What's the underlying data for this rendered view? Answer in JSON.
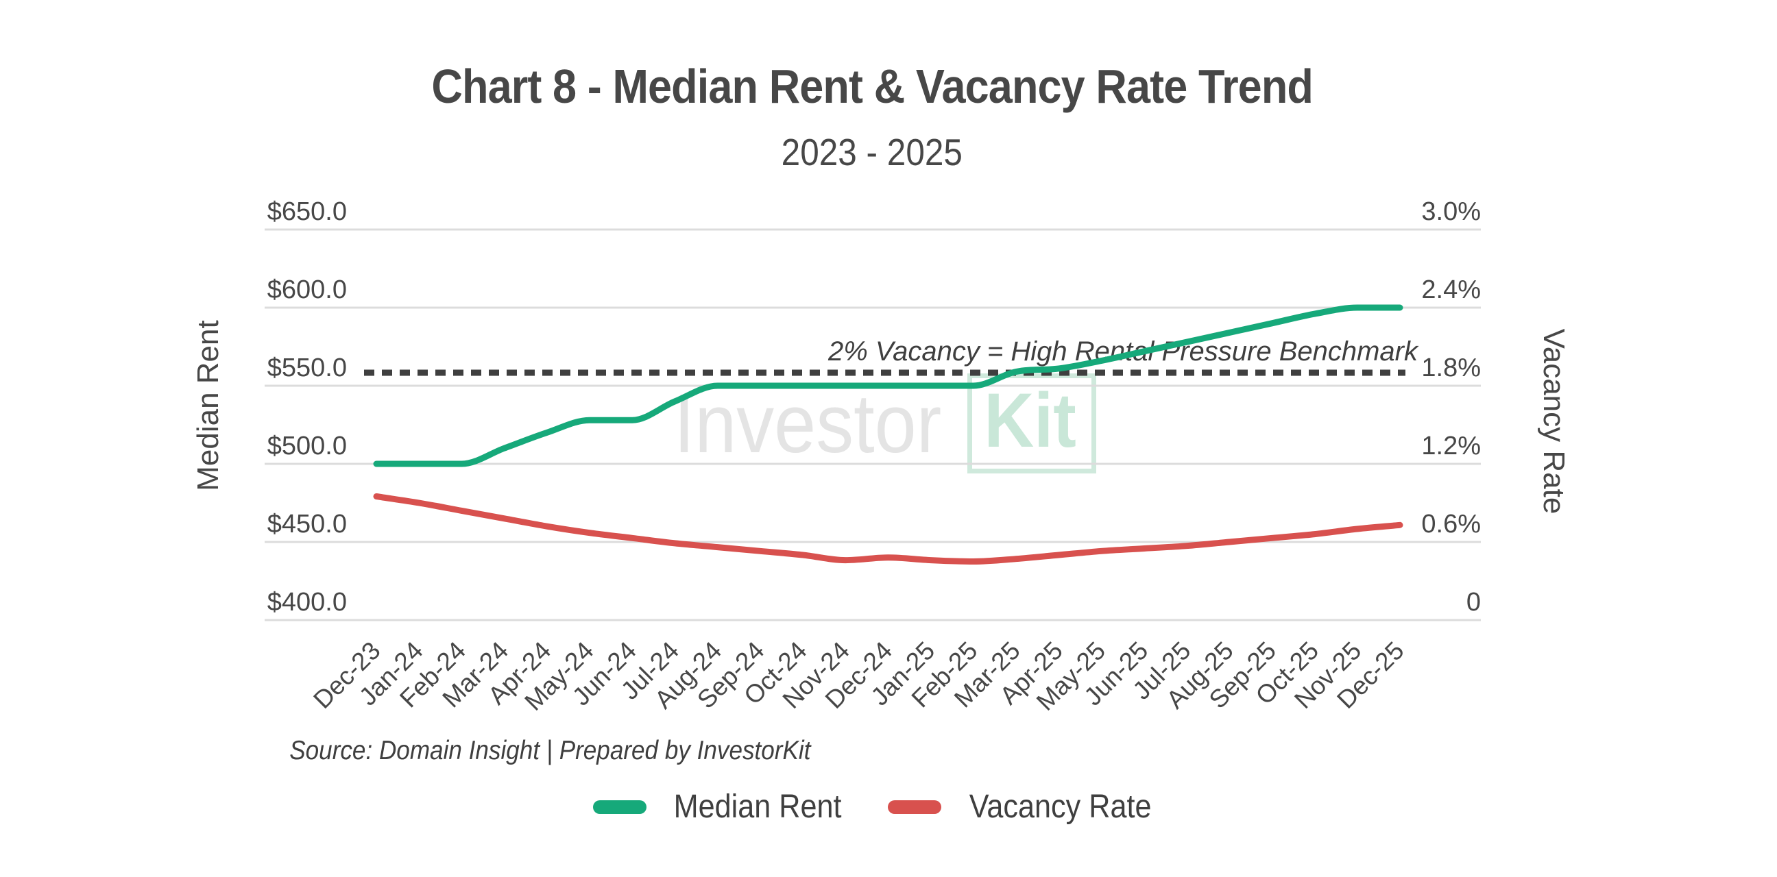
{
  "header": {
    "title": "Chart 8 - Median Rent & Vacancy Rate Trend",
    "subtitle": "2023 - 2025"
  },
  "watermark": {
    "part1": "Investor",
    "part2": "Kit"
  },
  "footer": {
    "source": "Source: Domain Insight | Prepared by InvestorKit"
  },
  "legend": [
    {
      "label": "Median Rent",
      "color": "#16A97A"
    },
    {
      "label": "Vacancy Rate",
      "color": "#D8514E"
    }
  ],
  "colors": {
    "accent_green": "#16A97A",
    "accent_red": "#D8514E",
    "grid": "#DCDCDC",
    "benchmark_line": "#3F3F3F",
    "text": "#474747",
    "watermark_gray": "#E4E4E4",
    "watermark_mint": "#C9E7D8"
  },
  "chart_data": {
    "type": "line",
    "title": "Chart 8 - Median Rent & Vacancy Rate Trend",
    "subtitle": "2023 - 2025",
    "grid": true,
    "legend_position": "bottom",
    "categories": [
      "Dec-23",
      "Jan-24",
      "Feb-24",
      "Mar-24",
      "Apr-24",
      "May-24",
      "Jun-24",
      "Jul-24",
      "Aug-24",
      "Sep-24",
      "Oct-24",
      "Nov-24",
      "Dec-24",
      "Jan-25",
      "Feb-25",
      "Mar-25",
      "Apr-25",
      "May-25",
      "Jun-25",
      "Jul-25",
      "Aug-25",
      "Sep-25",
      "Oct-25",
      "Nov-25",
      "Dec-25"
    ],
    "series": [
      {
        "name": "Median Rent",
        "axis": "left",
        "color": "#16A97A",
        "values": [
          500,
          500,
          500,
          510,
          520,
          528,
          528,
          540,
          550,
          550,
          550,
          550,
          550,
          550,
          550,
          559,
          561,
          566,
          572,
          578,
          584,
          590,
          596,
          600,
          600
        ]
      },
      {
        "name": "Vacancy Rate",
        "axis": "right",
        "color": "#D8514E",
        "values": [
          0.95,
          0.9,
          0.84,
          0.78,
          0.72,
          0.67,
          0.63,
          0.59,
          0.56,
          0.53,
          0.5,
          0.46,
          0.48,
          0.46,
          0.45,
          0.47,
          0.5,
          0.53,
          0.55,
          0.57,
          0.6,
          0.63,
          0.66,
          0.7,
          0.73
        ]
      }
    ],
    "left_axis": {
      "title": "Median Rent",
      "min": 400,
      "max": 650,
      "step": 50,
      "ticks": [
        "$650.0",
        "$600.0",
        "$550.0",
        "$500.0",
        "$450.0",
        "$400.0"
      ]
    },
    "right_axis": {
      "title": "Vacancy Rate",
      "min": 0,
      "max": 3.0,
      "step": 0.6,
      "ticks": [
        "3.0%",
        "2.4%",
        "1.8%",
        "1.2%",
        "0.6%",
        "0"
      ]
    },
    "benchmark": {
      "label": "2% Vacancy = High Rental Pressure Benchmark",
      "value_pct": 2.0,
      "display_pct": 1.9
    }
  }
}
